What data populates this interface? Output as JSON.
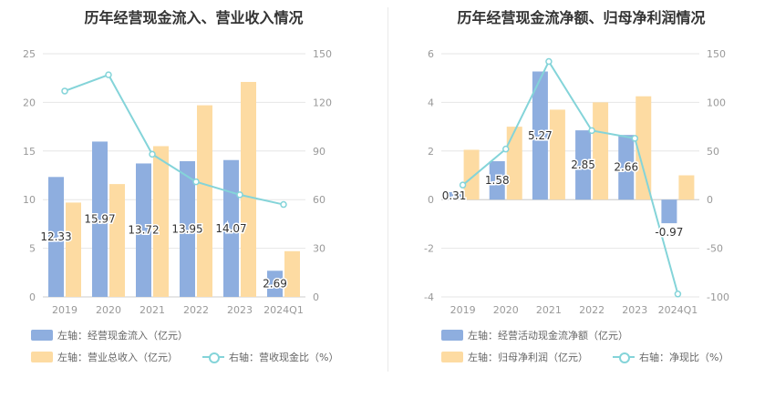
{
  "colors": {
    "bar1": "#8eaedf",
    "bar2": "#fddba2",
    "line": "#84d4d9",
    "axis": "#999999",
    "grid": "#e6e6e6",
    "label": "#333333"
  },
  "chart_data": [
    {
      "type": "bar",
      "title": "历年经营现金流入、营业收入情况",
      "categories": [
        "2019",
        "2020",
        "2021",
        "2022",
        "2023",
        "2024Q1"
      ],
      "left_axis": {
        "ylim": [
          0,
          25
        ],
        "ticks": [
          "0",
          "5",
          "10",
          "15",
          "20",
          "25"
        ]
      },
      "right_axis": {
        "ylim": [
          0,
          150
        ],
        "ticks": [
          "0",
          "30",
          "60",
          "90",
          "120",
          "150"
        ]
      },
      "series": [
        {
          "name": "左轴：经营现金流入（亿元）",
          "axis": "left",
          "kind": "bar",
          "values": [
            12.33,
            15.97,
            13.72,
            13.95,
            14.07,
            2.69
          ],
          "labels": [
            "12.33",
            "15.97",
            "13.72",
            "13.95",
            "14.07",
            "2.69"
          ]
        },
        {
          "name": "左轴：营业总收入（亿元）",
          "axis": "left",
          "kind": "bar",
          "values": [
            9.7,
            11.6,
            15.5,
            19.7,
            22.1,
            4.7
          ]
        },
        {
          "name": "右轴：营收现金比（%）",
          "axis": "right",
          "kind": "line",
          "values": [
            127,
            137,
            88,
            71,
            63,
            57
          ]
        }
      ]
    },
    {
      "type": "bar",
      "title": "历年经营现金流净额、归母净利润情况",
      "categories": [
        "2019",
        "2020",
        "2021",
        "2022",
        "2023",
        "2024Q1"
      ],
      "left_axis": {
        "ylim": [
          -4,
          6
        ],
        "ticks": [
          "-4",
          "-2",
          "0",
          "2",
          "4",
          "6"
        ]
      },
      "right_axis": {
        "ylim": [
          -100,
          150
        ],
        "ticks": [
          "-100",
          "-50",
          "0",
          "50",
          "100",
          "150"
        ]
      },
      "series": [
        {
          "name": "左轴：经营活动现金流净额（亿元）",
          "axis": "left",
          "kind": "bar",
          "values": [
            0.31,
            1.58,
            5.27,
            2.85,
            2.66,
            -0.97
          ],
          "labels": [
            "0.31",
            "1.58",
            "5.27",
            "2.85",
            "2.66",
            "-0.97"
          ]
        },
        {
          "name": "左轴：归母净利润（亿元）",
          "axis": "left",
          "kind": "bar",
          "values": [
            2.05,
            3.0,
            3.7,
            4.0,
            4.25,
            1.0
          ]
        },
        {
          "name": "右轴：净现比（%）",
          "axis": "right",
          "kind": "line",
          "values": [
            15,
            52,
            142,
            71,
            63,
            -97
          ]
        }
      ]
    }
  ]
}
